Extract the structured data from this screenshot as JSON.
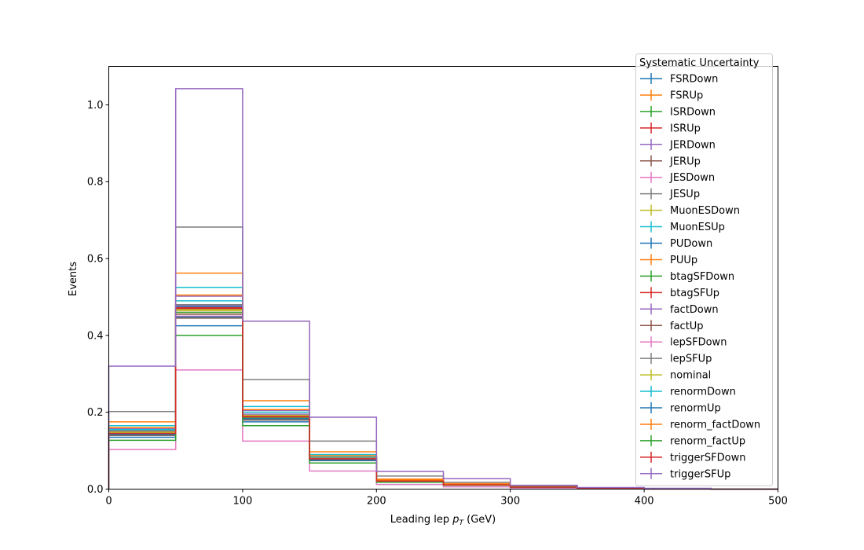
{
  "chart_data": {
    "type": "line",
    "style": "step-histogram",
    "title": "",
    "xlabel": "Leading lep",
    "xlabel_symbol": "p",
    "xlabel_subscript": "T",
    "xlabel_unit": "(GeV)",
    "ylabel": "Events",
    "xlim": [
      0,
      500
    ],
    "ylim": [
      0,
      1.1
    ],
    "xticks": [
      0,
      100,
      200,
      300,
      400,
      500
    ],
    "yticks": [
      0.0,
      0.2,
      0.4,
      0.6,
      0.8,
      1.0
    ],
    "xtick_labels": [
      "0",
      "100",
      "200",
      "300",
      "400",
      "500"
    ],
    "ytick_labels": [
      "0.0",
      "0.2",
      "0.4",
      "0.6",
      "0.8",
      "1.0"
    ],
    "grid": false,
    "legend_title": "Systematic Uncertainty",
    "legend_position": "top-right",
    "bin_edges": [
      0,
      50,
      100,
      150,
      200,
      250,
      300,
      350,
      400,
      450,
      500
    ],
    "series": [
      {
        "name": "FSRDown",
        "color": "#1f77b4",
        "values": [
          0.145,
          0.475,
          0.19,
          0.08,
          0.022,
          0.012,
          0.006,
          0.002,
          0.001,
          0.0
        ]
      },
      {
        "name": "FSRUp",
        "color": "#ff7f0e",
        "values": [
          0.15,
          0.46,
          0.19,
          0.08,
          0.022,
          0.012,
          0.006,
          0.002,
          0.001,
          0.0
        ]
      },
      {
        "name": "ISRDown",
        "color": "#2ca02c",
        "values": [
          0.15,
          0.47,
          0.19,
          0.08,
          0.022,
          0.012,
          0.006,
          0.002,
          0.001,
          0.0
        ]
      },
      {
        "name": "ISRUp",
        "color": "#d62728",
        "values": [
          0.148,
          0.472,
          0.19,
          0.08,
          0.022,
          0.012,
          0.006,
          0.002,
          0.001,
          0.0
        ]
      },
      {
        "name": "JERDown",
        "color": "#9467bd",
        "values": [
          0.15,
          0.478,
          0.195,
          0.082,
          0.022,
          0.012,
          0.006,
          0.002,
          0.001,
          0.0
        ]
      },
      {
        "name": "JERUp",
        "color": "#8c564b",
        "values": [
          0.143,
          0.455,
          0.18,
          0.075,
          0.02,
          0.011,
          0.005,
          0.002,
          0.001,
          0.0
        ]
      },
      {
        "name": "JESDown",
        "color": "#e377c2",
        "values": [
          0.14,
          0.45,
          0.185,
          0.078,
          0.021,
          0.011,
          0.005,
          0.002,
          0.001,
          0.0
        ]
      },
      {
        "name": "JESUp",
        "color": "#7f7f7f",
        "values": [
          0.152,
          0.48,
          0.2,
          0.085,
          0.023,
          0.012,
          0.006,
          0.002,
          0.001,
          0.0
        ]
      },
      {
        "name": "MuonESDown",
        "color": "#bcbd22",
        "values": [
          0.148,
          0.465,
          0.19,
          0.08,
          0.022,
          0.012,
          0.006,
          0.002,
          0.001,
          0.0
        ]
      },
      {
        "name": "MuonESUp",
        "color": "#17becf",
        "values": [
          0.165,
          0.525,
          0.215,
          0.09,
          0.024,
          0.013,
          0.006,
          0.002,
          0.001,
          0.0
        ]
      },
      {
        "name": "PUDown",
        "color": "#1f77b4",
        "values": [
          0.135,
          0.425,
          0.175,
          0.074,
          0.02,
          0.011,
          0.005,
          0.002,
          0.001,
          0.0
        ]
      },
      {
        "name": "PUUp",
        "color": "#ff7f0e",
        "values": [
          0.175,
          0.562,
          0.23,
          0.097,
          0.026,
          0.014,
          0.007,
          0.002,
          0.001,
          0.0
        ]
      },
      {
        "name": "btagSFDown",
        "color": "#2ca02c",
        "values": [
          0.14,
          0.46,
          0.185,
          0.078,
          0.021,
          0.011,
          0.005,
          0.002,
          0.001,
          0.0
        ]
      },
      {
        "name": "btagSFUp",
        "color": "#d62728",
        "values": [
          0.148,
          0.47,
          0.19,
          0.08,
          0.022,
          0.012,
          0.006,
          0.002,
          0.001,
          0.0
        ]
      },
      {
        "name": "factDown",
        "color": "#9467bd",
        "values": [
          0.158,
          0.502,
          0.205,
          0.086,
          0.023,
          0.012,
          0.006,
          0.002,
          0.001,
          0.0
        ]
      },
      {
        "name": "factUp",
        "color": "#8c564b",
        "values": [
          0.14,
          0.445,
          0.18,
          0.076,
          0.02,
          0.011,
          0.005,
          0.002,
          0.001,
          0.0
        ]
      },
      {
        "name": "lepSFDown",
        "color": "#e377c2",
        "values": [
          0.103,
          0.31,
          0.125,
          0.047,
          0.012,
          0.006,
          0.003,
          0.001,
          0.0,
          0.0
        ]
      },
      {
        "name": "lepSFUp",
        "color": "#7f7f7f",
        "values": [
          0.202,
          0.682,
          0.285,
          0.125,
          0.034,
          0.018,
          0.008,
          0.003,
          0.001,
          0.0
        ]
      },
      {
        "name": "nominal",
        "color": "#bcbd22",
        "values": [
          0.148,
          0.468,
          0.192,
          0.08,
          0.022,
          0.012,
          0.006,
          0.002,
          0.001,
          0.0
        ]
      },
      {
        "name": "renormDown",
        "color": "#17becf",
        "values": [
          0.155,
          0.49,
          0.2,
          0.084,
          0.023,
          0.012,
          0.006,
          0.002,
          0.001,
          0.0
        ]
      },
      {
        "name": "renormUp",
        "color": "#1f77b4",
        "values": [
          0.142,
          0.448,
          0.183,
          0.077,
          0.021,
          0.011,
          0.005,
          0.002,
          0.001,
          0.0
        ]
      },
      {
        "name": "renorm_factDown",
        "color": "#ff7f0e",
        "values": [
          0.16,
          0.505,
          0.207,
          0.087,
          0.024,
          0.013,
          0.006,
          0.002,
          0.001,
          0.0
        ]
      },
      {
        "name": "renorm_factUp",
        "color": "#2ca02c",
        "values": [
          0.127,
          0.4,
          0.165,
          0.068,
          0.018,
          0.01,
          0.005,
          0.002,
          0.001,
          0.0
        ]
      },
      {
        "name": "triggerSFDown",
        "color": "#d62728",
        "values": [
          0.145,
          0.47,
          0.188,
          0.079,
          0.021,
          0.011,
          0.005,
          0.002,
          0.001,
          0.0
        ]
      },
      {
        "name": "triggerSFUp",
        "color": "#9467bd",
        "values": [
          0.32,
          1.042,
          0.437,
          0.187,
          0.046,
          0.027,
          0.01,
          0.004,
          0.002,
          0.0
        ]
      }
    ]
  }
}
